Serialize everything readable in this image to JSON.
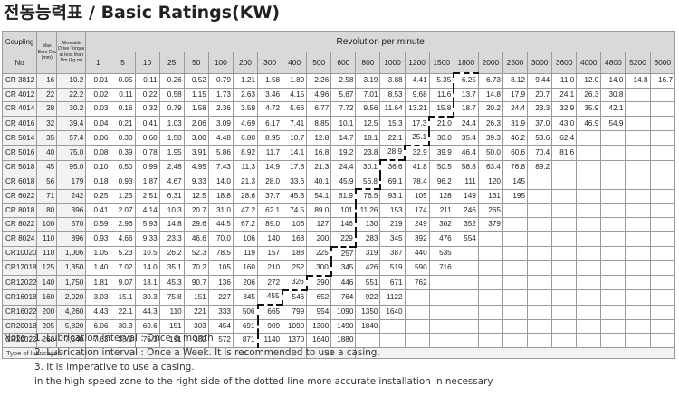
{
  "title": "전동능력표 / Basic Ratings(KW)",
  "header": {
    "coupling": "Coupling",
    "no": "No",
    "max_bore": "Max Bore Dia (mm)",
    "torque": "Allowable Drive Torque at less than Nm (kg·m)",
    "revolution": "Revolution per minute"
  },
  "rpm": [
    "1",
    "5",
    "10",
    "25",
    "50",
    "100",
    "200",
    "300",
    "400",
    "500",
    "600",
    "800",
    "1000",
    "1200",
    "1500",
    "1800",
    "2000",
    "2500",
    "3000",
    "3600",
    "4000",
    "4800",
    "5200",
    "6000"
  ],
  "rows": [
    {
      "name": "CR 3812",
      "bore": "16",
      "torque": "10.2",
      "vals": [
        "0.01",
        "0.05",
        "0.11",
        "0.26",
        "0.52",
        "0.79",
        "1.21",
        "1.58",
        "1.89",
        "2.26",
        "2.58",
        "3.19",
        "3.88",
        "4.41",
        "5.35",
        "6.25",
        "6.73",
        "8.12",
        "9.44",
        "11.0",
        "12.0",
        "14.0",
        "14.8",
        "16.7"
      ]
    },
    {
      "name": "CR 4012",
      "bore": "22",
      "torque": "22.2",
      "vals": [
        "0.02",
        "0.11",
        "0.22",
        "0.58",
        "1.15",
        "1.73",
        "2.63",
        "3.46",
        "4.15",
        "4.96",
        "5.67",
        "7.01",
        "8.53",
        "9.68",
        "11.6",
        "13.7",
        "14.8",
        "17.9",
        "20.7",
        "24.1",
        "26.3",
        "30.8",
        "",
        ""
      ]
    },
    {
      "name": "CR 4014",
      "bore": "28",
      "torque": "30.2",
      "vals": [
        "0.03",
        "0.16",
        "0.32",
        "0.79",
        "1.58",
        "2.36",
        "3.59",
        "4.72",
        "5.66",
        "6.77",
        "7.72",
        "9.56",
        "11.64",
        "13.21",
        "15.8",
        "18.7",
        "20.2",
        "24.4",
        "23.3",
        "32.9",
        "35.9",
        "42.1",
        "",
        ""
      ]
    },
    {
      "name": "CR 4016",
      "bore": "32",
      "torque": "39.4",
      "vals": [
        "0.04",
        "0.21",
        "0.41",
        "1.03",
        "2.06",
        "3.09",
        "4.69",
        "6.17",
        "7.41",
        "8.85",
        "10.1",
        "12.5",
        "15.3",
        "17.3",
        "21.0",
        "24.4",
        "26.3",
        "31.9",
        "37.0",
        "43.0",
        "46.9",
        "54.9",
        "",
        ""
      ]
    },
    {
      "name": "CR 5014",
      "bore": "35",
      "torque": "57.4",
      "vals": [
        "0.06",
        "0.30",
        "0.60",
        "1.50",
        "3.00",
        "4.48",
        "6.80",
        "8.95",
        "10.7",
        "12.8",
        "14.7",
        "18.1",
        "22.1",
        "25.1",
        "30.0",
        "35.4",
        "39.3",
        "46.2",
        "53.6",
        "62.4",
        "",
        "",
        "",
        ""
      ]
    },
    {
      "name": "CR 5016",
      "bore": "40",
      "torque": "75.0",
      "vals": [
        "0.08",
        "0.39",
        "0.78",
        "1.95",
        "3.91",
        "5.86",
        "8.92",
        "11.7",
        "14.1",
        "16.8",
        "19.2",
        "23.8",
        "28.9",
        "32.9",
        "39.9",
        "46.4",
        "50.0",
        "60.6",
        "70.4",
        "81.6",
        "",
        "",
        "",
        ""
      ]
    },
    {
      "name": "CR 5018",
      "bore": "45",
      "torque": "95.0",
      "vals": [
        "0.10",
        "0.50",
        "0.99",
        "2.48",
        "4.95",
        "7.43",
        "11.3",
        "14.9",
        "17.8",
        "21.3",
        "24.4",
        "30.1",
        "36.6",
        "41.8",
        "50.5",
        "58.8",
        "63.4",
        "76.8",
        "89.2",
        "",
        "",
        "",
        "",
        ""
      ]
    },
    {
      "name": "CR 6018",
      "bore": "56",
      "torque": "179",
      "vals": [
        "0.18",
        "0.93",
        "1.87",
        "4.67",
        "9.33",
        "14.0",
        "21.3",
        "28.0",
        "33.6",
        "40.1",
        "45.9",
        "56.8",
        "69.1",
        "78.4",
        "96.2",
        "111",
        "120",
        "145",
        "",
        "",
        "",
        "",
        "",
        ""
      ]
    },
    {
      "name": "CR 6022",
      "bore": "71",
      "torque": "242",
      "vals": [
        "0.25",
        "1.25",
        "2.51",
        "6.31",
        "12.5",
        "18.8",
        "28.6",
        "37.7",
        "45.3",
        "54.1",
        "61.9",
        "76.5",
        "93.1",
        "105",
        "128",
        "149",
        "161",
        "195",
        "",
        "",
        "",
        "",
        "",
        ""
      ]
    },
    {
      "name": "CR 8018",
      "bore": "80",
      "torque": "396",
      "vals": [
        "0.41",
        "2.07",
        "4.14",
        "10.3",
        "20.7",
        "31.0",
        "47.2",
        "62.1",
        "74.5",
        "89.0",
        "101",
        "11.26",
        "153",
        "174",
        "211",
        "246",
        "265",
        "",
        "",
        "",
        "",
        "",
        "",
        ""
      ]
    },
    {
      "name": "CR 8022",
      "bore": "100",
      "torque": "570",
      "vals": [
        "0.59",
        "2.96",
        "5.93",
        "14.8",
        "29.6",
        "44.5",
        "67.2",
        "89.0",
        "106",
        "127",
        "146",
        "130",
        "219",
        "249",
        "302",
        "352",
        "379",
        "",
        "",
        "",
        "",
        "",
        "",
        ""
      ]
    },
    {
      "name": "CR 8024",
      "bore": "110",
      "torque": "896",
      "vals": [
        "0.93",
        "4.66",
        "9.33",
        "23.3",
        "46.6",
        "70.0",
        "106",
        "140",
        "168",
        "200",
        "229",
        "283",
        "345",
        "392",
        "476",
        "554",
        "",
        "",
        "",
        "",
        "",
        "",
        "",
        ""
      ]
    },
    {
      "name": "CR10020",
      "bore": "110",
      "torque": "1,006",
      "vals": [
        "1.05",
        "5.23",
        "10.5",
        "26.2",
        "52.3",
        "78.5",
        "119",
        "157",
        "188",
        "225",
        "257",
        "319",
        "387",
        "440",
        "535",
        "",
        "",
        "",
        "",
        "",
        "",
        "",
        "",
        ""
      ]
    },
    {
      "name": "CR12018",
      "bore": "125",
      "torque": "1,350",
      "vals": [
        "1.40",
        "7.02",
        "14.0",
        "35.1",
        "70.2",
        "105",
        "160",
        "210",
        "252",
        "300",
        "345",
        "426",
        "519",
        "590",
        "716",
        "",
        "",
        "",
        "",
        "",
        "",
        "",
        "",
        ""
      ]
    },
    {
      "name": "CR12022",
      "bore": "140",
      "torque": "1,750",
      "vals": [
        "1.81",
        "9.07",
        "18.1",
        "45.3",
        "90.7",
        "136",
        "206",
        "272",
        "326",
        "390",
        "446",
        "551",
        "671",
        "762",
        "",
        "",
        "",
        "",
        "",
        "",
        "",
        "",
        "",
        ""
      ]
    },
    {
      "name": "CR16018",
      "bore": "160",
      "torque": "2,920",
      "vals": [
        "3.03",
        "15.1",
        "30.3",
        "75.8",
        "151",
        "227",
        "345",
        "455",
        "546",
        "652",
        "764",
        "922",
        "1122",
        "",
        "",
        "",
        "",
        "",
        "",
        "",
        "",
        "",
        "",
        ""
      ]
    },
    {
      "name": "CR16022",
      "bore": "200",
      "torque": "4,260",
      "vals": [
        "4.43",
        "22.1",
        "44.3",
        "110",
        "221",
        "333",
        "506",
        "665",
        "799",
        "954",
        "1090",
        "1350",
        "1640",
        "",
        "",
        "",
        "",
        "",
        "",
        "",
        "",
        "",
        "",
        ""
      ]
    },
    {
      "name": "CR20018",
      "bore": "205",
      "torque": "5,820",
      "vals": [
        "6.06",
        "30.3",
        "60.6",
        "151",
        "303",
        "454",
        "691",
        "909",
        "1090",
        "1300",
        "1490",
        "1840",
        "",
        "",
        "",
        "",
        "",
        "",
        "",
        "",
        "",
        "",
        "",
        ""
      ]
    },
    {
      "name": "CR20022",
      "bore": "260",
      "torque": "7,340",
      "vals": [
        "7.63",
        "38.2",
        "76.3",
        "191",
        "382",
        "572",
        "871",
        "1140",
        "1370",
        "1640",
        "1880",
        "",
        "",
        "",
        "",
        "",
        "",
        "",
        "",
        "",
        "",
        "",
        "",
        ""
      ]
    }
  ],
  "lubrication": {
    "label": "Type of lubricayon",
    "types": [
      "I",
      "II",
      "III"
    ]
  },
  "notes": {
    "label": "Note :",
    "n1": "1. Lubrication interval : Once a month.",
    "n2": "2. Lubrication interval : Once a Week. It is recommended to use a casing.",
    "n3": "3. It is imperative to use a casing.",
    "n3b": "in the high speed zone to the right side of the dotted line more accurate installation in necessary."
  }
}
